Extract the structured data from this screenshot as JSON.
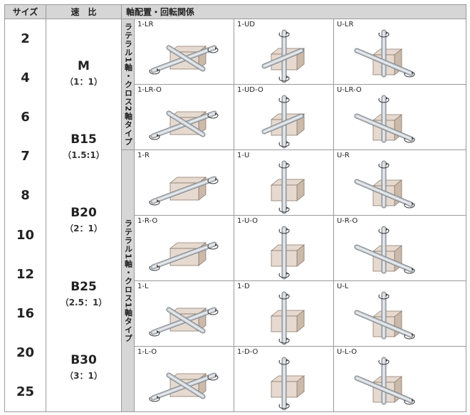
{
  "header": {
    "size_label": "サイズ",
    "ratio_label": "速　比",
    "config_label": "軸配置・回転関係"
  },
  "sizes": [
    "2",
    "4",
    "6",
    "7",
    "8",
    "10",
    "12",
    "16",
    "20",
    "25"
  ],
  "ratios": [
    {
      "code": "M",
      "value": "（1：1）"
    },
    {
      "code": "B15",
      "value": "（1.5:1）"
    },
    {
      "code": "B20",
      "value": "（2：1）"
    },
    {
      "code": "B25",
      "value": "（2.5：1）"
    },
    {
      "code": "B30",
      "value": "（3：1）"
    }
  ],
  "groups": [
    {
      "label": "ラテラル1軸・クロス2軸タイプ",
      "rows": [
        [
          "1-LR",
          "1-UD",
          "U-LR"
        ],
        [
          "1-LR-O",
          "1-UD-O",
          "U-LR-O"
        ]
      ]
    },
    {
      "label": "ラテラル1軸・クロス1軸タイプ",
      "rows": [
        [
          "1-R",
          "1-U",
          "U-R"
        ],
        [
          "1-R-O",
          "1-U-O",
          "U-R-O"
        ],
        [
          "1-L",
          "1-D",
          "U-L"
        ],
        [
          "1-L-O",
          "1-D-O",
          "U-L-O"
        ]
      ]
    }
  ],
  "colors": {
    "header_bg": "#d6d6d6",
    "housing": "#e6dad0",
    "housing_shade": "#cbb9aa",
    "shaft": "#c8cdd2"
  }
}
